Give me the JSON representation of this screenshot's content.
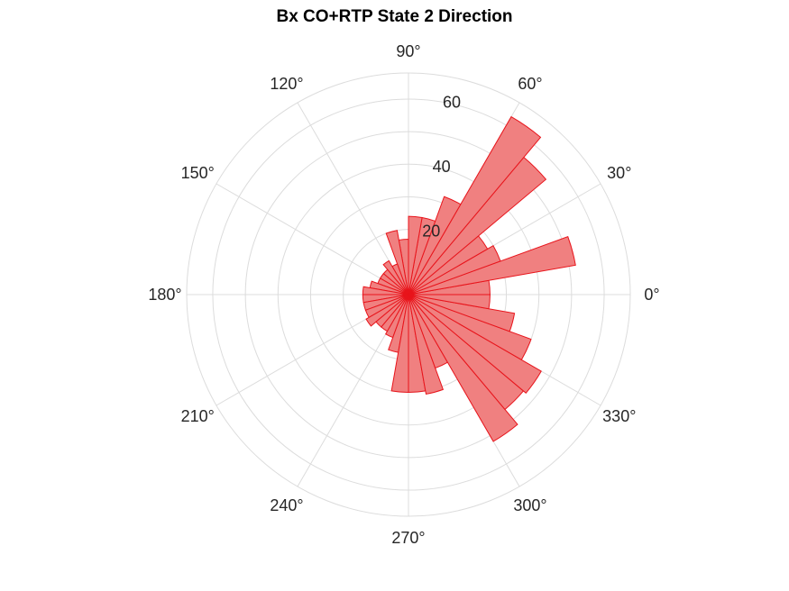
{
  "chart_data": {
    "type": "polar-histogram",
    "title": "Bx  CO+RTP State 2 Direction",
    "theta_ticks": [
      "0°",
      "30°",
      "60°",
      "90°",
      "120°",
      "150°",
      "180°",
      "210°",
      "240°",
      "270°",
      "300°",
      "330°"
    ],
    "r_ticks": [
      20,
      40,
      60
    ],
    "r_max": 68,
    "bin_width_deg": 10,
    "bins_center_deg": [
      5,
      15,
      25,
      35,
      45,
      55,
      65,
      75,
      85,
      95,
      105,
      115,
      125,
      135,
      145,
      155,
      165,
      175,
      185,
      195,
      205,
      215,
      225,
      235,
      245,
      255,
      265,
      275,
      285,
      295,
      305,
      315,
      325,
      335,
      345,
      355
    ],
    "values": [
      25,
      52,
      30,
      28,
      55,
      63,
      32,
      24,
      24,
      17,
      20,
      10,
      12,
      10,
      10,
      10,
      12,
      14,
      14,
      14,
      14,
      15,
      13,
      13,
      14,
      18,
      30,
      30,
      31,
      24,
      52,
      46,
      47,
      40,
      33,
      25
    ],
    "face_color": "#f08080",
    "edge_color": "#e8141b",
    "grid": true
  }
}
